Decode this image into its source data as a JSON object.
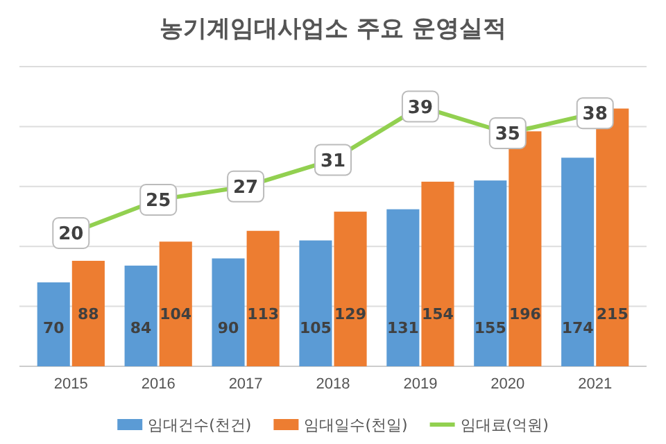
{
  "chart_data": {
    "type": "bar",
    "title": "농기계임대사업소 주요 운영실적",
    "categories": [
      "2015",
      "2016",
      "2017",
      "2018",
      "2019",
      "2020",
      "2021"
    ],
    "series": [
      {
        "name": "임대건수(천건)",
        "color": "#5b9bd5",
        "values": [
          70,
          84,
          90,
          105,
          131,
          155,
          174
        ]
      },
      {
        "name": "임대일수(천일)",
        "color": "#ed7d31",
        "values": [
          88,
          104,
          113,
          129,
          154,
          196,
          215
        ]
      },
      {
        "name": "임대료(억원)",
        "type": "line",
        "axis": "y2",
        "color": "#92d050",
        "values": [
          20,
          25,
          27,
          31,
          39,
          35,
          38
        ]
      }
    ],
    "ylim": [
      0,
      250
    ],
    "yticks": [
      {
        "value": 0,
        "label": null
      },
      {
        "value": 50,
        "label": null
      },
      {
        "value": 100,
        "label": null
      },
      {
        "value": 150,
        "label": null
      },
      {
        "value": 200,
        "label": null
      },
      {
        "value": 250,
        "label": null
      }
    ],
    "y2lim": [
      0,
      45
    ],
    "tick_labels": "x",
    "grid": "y",
    "data_labels": true,
    "legend": "bottom",
    "marker": "square"
  }
}
